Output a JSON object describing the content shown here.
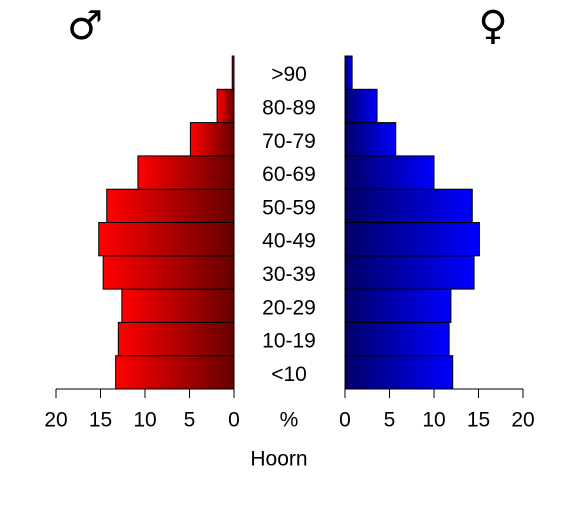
{
  "chart_data": {
    "type": "population-pyramid",
    "title": "Hoorn",
    "unit_label": "%",
    "categories": [
      "<10",
      "10-19",
      "20-29",
      "30-39",
      "40-49",
      "50-59",
      "60-69",
      "70-79",
      "80-89",
      ">90"
    ],
    "series": [
      {
        "name": "♂",
        "color": "#ff0000",
        "values": [
          13.3,
          13.0,
          12.6,
          14.7,
          15.2,
          14.3,
          10.8,
          4.9,
          1.9,
          0.2
        ]
      },
      {
        "name": "♀",
        "color": "#0000ff",
        "values": [
          12.1,
          11.7,
          11.9,
          14.5,
          15.1,
          14.3,
          10.0,
          5.7,
          3.6,
          0.8
        ]
      }
    ],
    "xlim": [
      0,
      20
    ],
    "xticks": [
      0,
      5,
      10,
      15,
      20
    ]
  }
}
